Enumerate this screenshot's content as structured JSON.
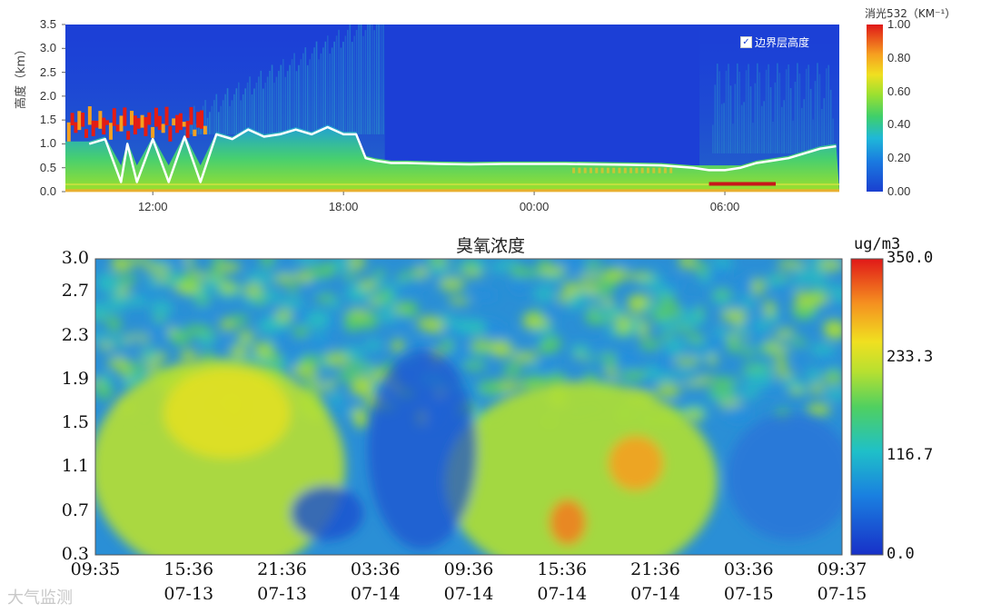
{
  "chart_data": [
    {
      "type": "heatmap",
      "title": "",
      "colorbar_label": "消光532（KM⁻¹）",
      "colorbar_ticks": [
        "1.00",
        "0.80",
        "0.60",
        "0.40",
        "0.20",
        "0.00"
      ],
      "colorbar_range": [
        0,
        1
      ],
      "ylabel": "高度（km）",
      "y_ticks": [
        "3.5",
        "3.0",
        "2.5",
        "2.0",
        "1.5",
        "1.0",
        "0.5",
        "0.0"
      ],
      "ylim": [
        0,
        3.5
      ],
      "x_ticks": [
        "12:00",
        "18:00",
        "00:00",
        "06:00"
      ],
      "legend": {
        "label": "边界层高度",
        "checked": true,
        "placement": "top-right"
      },
      "series": [
        {
          "name": "边界层高度",
          "x_hours": [
            10.0,
            10.5,
            11.0,
            11.2,
            11.5,
            12.0,
            12.5,
            13.0,
            13.5,
            14.0,
            14.5,
            15.0,
            15.5,
            16.0,
            16.5,
            17.0,
            17.5,
            18.0,
            18.4,
            18.7,
            19.0,
            19.5,
            20.0,
            21.0,
            22.0,
            23.0,
            24.0,
            25.0,
            26.0,
            27.0,
            28.0,
            29.0,
            29.5,
            30.0,
            30.5,
            31.0,
            31.5,
            32.0,
            32.5,
            33.0,
            33.5
          ],
          "values": [
            1.0,
            1.1,
            0.2,
            1.0,
            0.2,
            1.1,
            0.2,
            1.15,
            0.2,
            1.2,
            1.1,
            1.3,
            1.15,
            1.2,
            1.3,
            1.2,
            1.35,
            1.2,
            1.2,
            0.7,
            0.65,
            0.6,
            0.6,
            0.58,
            0.57,
            0.58,
            0.58,
            0.58,
            0.57,
            0.56,
            0.55,
            0.5,
            0.45,
            0.45,
            0.5,
            0.6,
            0.65,
            0.7,
            0.8,
            0.9,
            0.95
          ]
        }
      ]
    },
    {
      "type": "heatmap",
      "title": "臭氧浓度",
      "colorbar_label": "ug/m3",
      "colorbar_ticks": [
        "350.0",
        "233.3",
        "116.7",
        "0.0"
      ],
      "colorbar_range": [
        0,
        350
      ],
      "y_ticks": [
        "3.0",
        "2.7",
        "2.3",
        "1.9",
        "1.5",
        "1.1",
        "0.7",
        "0.3"
      ],
      "ylim": [
        0.3,
        3.0
      ],
      "x_ticks": [
        {
          "time": "09:35",
          "date": ""
        },
        {
          "time": "15:36",
          "date": "07-13"
        },
        {
          "time": "21:36",
          "date": "07-13"
        },
        {
          "time": "03:36",
          "date": "07-14"
        },
        {
          "time": "09:36",
          "date": "07-14"
        },
        {
          "time": "15:36",
          "date": "07-14"
        },
        {
          "time": "21:36",
          "date": "07-14"
        },
        {
          "time": "03:36",
          "date": "07-15"
        },
        {
          "time": "09:37",
          "date": "07-15"
        }
      ]
    }
  ],
  "watermark": "大气监测"
}
